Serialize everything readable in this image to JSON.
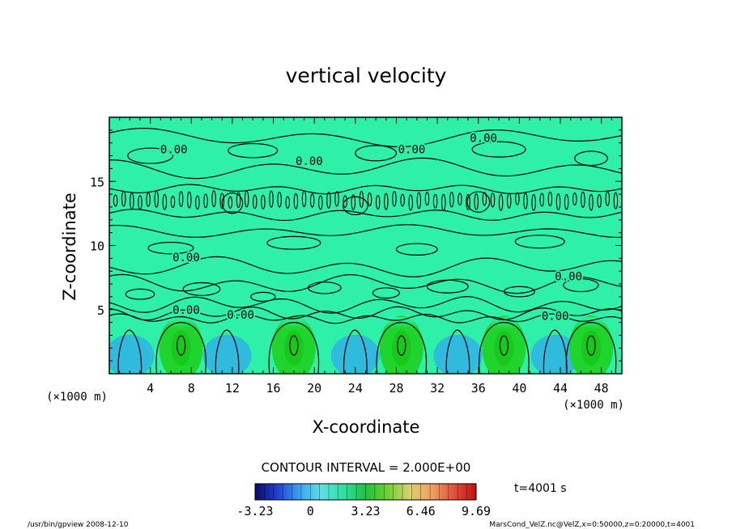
{
  "chart_data": {
    "type": "heatmap",
    "title": "vertical velocity",
    "xlabel": "X-coordinate",
    "ylabel": "Z-coordinate",
    "x_unit_left": "(×1000 m)",
    "x_unit_right": "(×1000 m)",
    "xlim": [
      0,
      50
    ],
    "ylim": [
      0,
      20
    ],
    "x_ticks": [
      "4",
      "8",
      "12",
      "16",
      "20",
      "24",
      "28",
      "32",
      "36",
      "40",
      "44",
      "48"
    ],
    "y_ticks": [
      "5",
      "10",
      "15"
    ],
    "contour_interval_text": "CONTOUR INTERVAL = 2.000E+00",
    "contour_labels": [
      {
        "text": "0.00",
        "x": 6.3,
        "z": 17.5
      },
      {
        "text": "0.00",
        "x": 19.5,
        "z": 16.6
      },
      {
        "text": "0.00",
        "x": 29.5,
        "z": 17.5
      },
      {
        "text": "0.00",
        "x": 36.5,
        "z": 18.4
      },
      {
        "text": "0.00",
        "x": 7.5,
        "z": 9.1
      },
      {
        "text": "0.00",
        "x": 44.8,
        "z": 7.6
      },
      {
        "text": "0.00",
        "x": 7.5,
        "z": 5.0
      },
      {
        "text": "0.00",
        "x": 12.8,
        "z": 4.6
      },
      {
        "text": "0.00",
        "x": 43.5,
        "z": 4.5
      }
    ],
    "updraft_cores_x": [
      7,
      18,
      28.5,
      38.5,
      47
    ],
    "downdraft_cores_x": [
      2,
      11.5,
      24,
      34,
      43.5
    ],
    "colorbar": {
      "tick_labels": [
        "-3.23",
        "0",
        "3.23",
        "6.46",
        "9.69"
      ],
      "min": -3.23,
      "max": 9.69,
      "stops": [
        "#0a0a66",
        "#1f3fd0",
        "#3fa0f0",
        "#5fe0e0",
        "#2fe0a0",
        "#20c040",
        "#70d030",
        "#d8d070",
        "#f0a060",
        "#e05040",
        "#c01010"
      ]
    },
    "colors": {
      "background_field": "#2ff0a8",
      "updraft": "#1fd42c",
      "downdraft": "#30a8f0"
    }
  },
  "time_label": "t=4001 s",
  "footer": {
    "left": "/usr/bin/gpview   2008-12-10",
    "right": "MarsCond_VelZ.nc@VelZ,x=0:50000,z=0:20000,t=4001"
  }
}
